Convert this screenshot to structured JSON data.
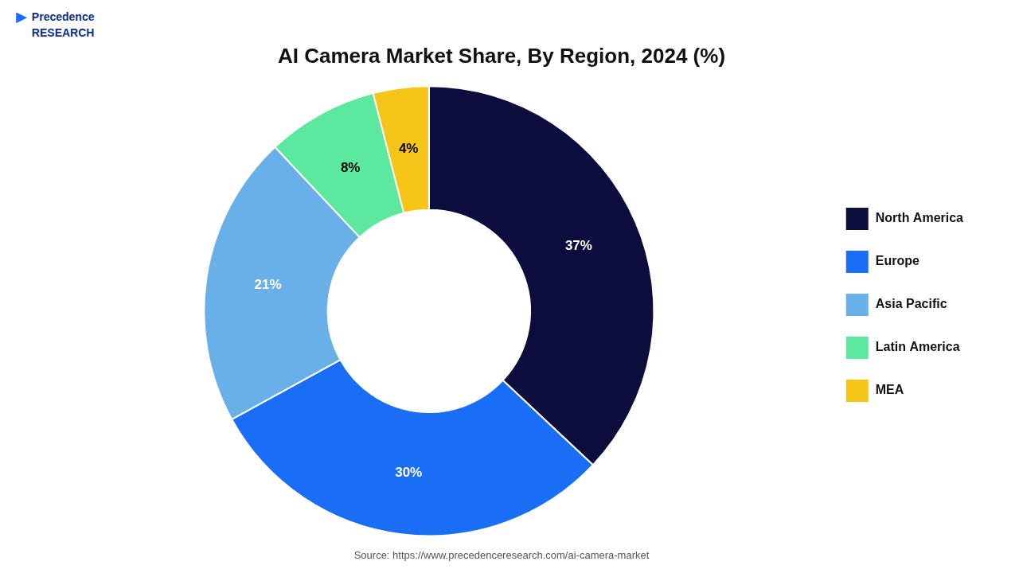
{
  "chart_data": {
    "type": "doughnut",
    "title": "AI Camera Market Share, By Region, 2024 (%)",
    "categories": [
      "North America",
      "Europe",
      "Asia Pacific",
      "Latin America",
      "MEA"
    ],
    "values": [
      37,
      30,
      21,
      8,
      4
    ],
    "colors": [
      "#0d0d3d",
      "#1a6ef5",
      "#6ab0e8",
      "#5de8a0",
      "#f5c518"
    ],
    "data_labels": true,
    "value_labels": [
      "37%",
      "30%",
      "21%",
      "8%",
      "4%"
    ],
    "legend": "right",
    "annotations": [
      "Source: https://www.precedenceresearch.com/ai-camera-market",
      "Precedence\nRESEARCH",
      "▶"
    ]
  }
}
